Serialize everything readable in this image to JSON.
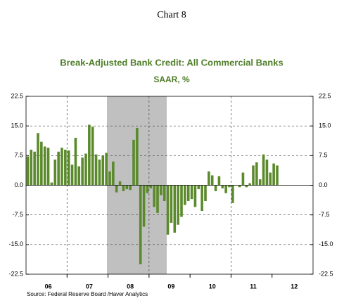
{
  "chart_data": {
    "type": "bar",
    "heading": "Chart 8",
    "title": "Break-Adjusted Bank Credit: All Commercial Banks",
    "subtitle": "SAAR, %",
    "source": "Source:  Federal Reserve Board /Haver Analytics",
    "color": "#5b8a2c",
    "grid": true,
    "ylim": [
      -22.5,
      22.5
    ],
    "yticks": [
      22.5,
      {
        "value": 15,
        "label": "15.0"
      },
      7.5,
      {
        "value": 0,
        "label": "0.0"
      },
      -7.5,
      {
        "value": -15,
        "label": "-15.0"
      },
      -22.5
    ],
    "categories": [
      null,
      null,
      null,
      null,
      null,
      null,
      "06",
      null,
      null,
      null,
      null,
      null,
      null,
      null,
      null,
      null,
      null,
      null,
      "07",
      null,
      null,
      null,
      null,
      null,
      null,
      null,
      null,
      null,
      null,
      null,
      "08",
      null,
      null,
      null,
      null,
      null,
      null,
      null,
      null,
      null,
      null,
      null,
      "09",
      null,
      null,
      null,
      null,
      null,
      null,
      null,
      null,
      null,
      null,
      null,
      "10",
      null,
      null,
      null,
      null,
      null,
      null,
      null,
      null,
      null,
      null,
      null,
      "11",
      null,
      null,
      null,
      null,
      null,
      null,
      null,
      null,
      null,
      null,
      null,
      "12",
      null,
      null,
      null,
      null,
      null
    ],
    "values": [
      7.3,
      9.0,
      8.5,
      13.2,
      11.0,
      9.8,
      9.5,
      0.7,
      6.5,
      8.5,
      9.5,
      9.0,
      8.8,
      5.2,
      12.0,
      4.8,
      7.0,
      8.0,
      15.3,
      14.8,
      7.8,
      6.5,
      7.5,
      8.2,
      3.5,
      6.0,
      -1.8,
      1.0,
      -1.5,
      -1.0,
      -1.2,
      11.5,
      14.5,
      -20.0,
      -10.5,
      -2.0,
      -0.8,
      -5.5,
      -7.0,
      -2.5,
      -4.0,
      -12.5,
      -9.5,
      -12.0,
      -10.0,
      -8.0,
      -5.0,
      -4.0,
      -3.5,
      -5.5,
      -1.0,
      -6.5,
      -4.0,
      3.5,
      2.5,
      -1.5,
      2.3,
      -0.8,
      -2.0,
      -0.5,
      -4.5,
      0,
      -0.5,
      3.2,
      -0.5,
      0.5,
      5.0,
      5.8,
      1.5,
      7.8,
      6.5,
      3.2,
      5.5,
      5.0,
      null,
      null,
      null,
      null,
      null,
      null,
      null,
      null,
      null,
      null
    ]
  }
}
